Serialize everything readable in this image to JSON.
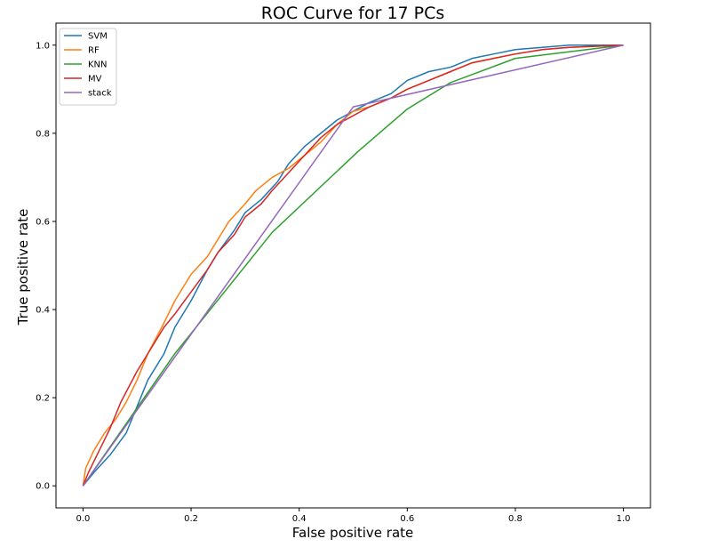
{
  "chart_data": {
    "type": "line",
    "title": "ROC Curve for 17 PCs",
    "xlabel": "False positive rate",
    "ylabel": "True positive rate",
    "xlim": [
      -0.05,
      1.05
    ],
    "ylim": [
      -0.05,
      1.05
    ],
    "x_ticks": [
      0.0,
      0.2,
      0.4,
      0.6,
      0.8,
      1.0
    ],
    "y_ticks": [
      0.0,
      0.2,
      0.4,
      0.6,
      0.8,
      1.0
    ],
    "x_tick_labels": [
      "0.0",
      "0.2",
      "0.4",
      "0.6",
      "0.8",
      "1.0"
    ],
    "y_tick_labels": [
      "0.0",
      "0.2",
      "0.4",
      "0.6",
      "0.8",
      "1.0"
    ],
    "grid": false,
    "legend_position": "top-left",
    "series": [
      {
        "name": "SVM",
        "color": "#1f77b4",
        "points": [
          [
            0.0,
            0.0
          ],
          [
            0.02,
            0.03
          ],
          [
            0.05,
            0.07
          ],
          [
            0.08,
            0.12
          ],
          [
            0.1,
            0.18
          ],
          [
            0.12,
            0.24
          ],
          [
            0.15,
            0.3
          ],
          [
            0.17,
            0.36
          ],
          [
            0.2,
            0.42
          ],
          [
            0.23,
            0.49
          ],
          [
            0.25,
            0.53
          ],
          [
            0.28,
            0.58
          ],
          [
            0.3,
            0.62
          ],
          [
            0.33,
            0.65
          ],
          [
            0.36,
            0.69
          ],
          [
            0.38,
            0.73
          ],
          [
            0.41,
            0.77
          ],
          [
            0.44,
            0.8
          ],
          [
            0.47,
            0.83
          ],
          [
            0.5,
            0.85
          ],
          [
            0.53,
            0.87
          ],
          [
            0.57,
            0.89
          ],
          [
            0.6,
            0.92
          ],
          [
            0.64,
            0.94
          ],
          [
            0.68,
            0.95
          ],
          [
            0.72,
            0.97
          ],
          [
            0.76,
            0.98
          ],
          [
            0.8,
            0.99
          ],
          [
            0.85,
            0.995
          ],
          [
            0.9,
            1.0
          ],
          [
            1.0,
            1.0
          ]
        ]
      },
      {
        "name": "RF",
        "color": "#ff7f0e",
        "points": [
          [
            0.0,
            0.0
          ],
          [
            0.005,
            0.04
          ],
          [
            0.02,
            0.08
          ],
          [
            0.04,
            0.12
          ],
          [
            0.06,
            0.15
          ],
          [
            0.08,
            0.19
          ],
          [
            0.1,
            0.24
          ],
          [
            0.12,
            0.3
          ],
          [
            0.15,
            0.37
          ],
          [
            0.17,
            0.42
          ],
          [
            0.2,
            0.48
          ],
          [
            0.23,
            0.52
          ],
          [
            0.25,
            0.56
          ],
          [
            0.27,
            0.6
          ],
          [
            0.3,
            0.64
          ],
          [
            0.32,
            0.67
          ],
          [
            0.35,
            0.7
          ],
          [
            0.38,
            0.72
          ],
          [
            0.41,
            0.75
          ],
          [
            0.44,
            0.78
          ],
          [
            0.47,
            0.82
          ],
          [
            0.5,
            0.85
          ],
          [
            0.53,
            0.86
          ],
          [
            0.57,
            0.88
          ],
          [
            0.6,
            0.9
          ],
          [
            0.64,
            0.92
          ],
          [
            0.68,
            0.94
          ],
          [
            0.72,
            0.96
          ],
          [
            0.76,
            0.97
          ],
          [
            0.8,
            0.98
          ],
          [
            0.85,
            0.99
          ],
          [
            0.9,
            0.995
          ],
          [
            1.0,
            1.0
          ]
        ]
      },
      {
        "name": "KNN",
        "color": "#2ca02c",
        "points": [
          [
            0.0,
            0.0
          ],
          [
            0.17,
            0.3
          ],
          [
            0.35,
            0.575
          ],
          [
            0.51,
            0.76
          ],
          [
            0.6,
            0.855
          ],
          [
            0.68,
            0.915
          ],
          [
            0.8,
            0.97
          ],
          [
            1.0,
            1.0
          ]
        ]
      },
      {
        "name": "MV",
        "color": "#d62728",
        "points": [
          [
            0.0,
            0.0
          ],
          [
            0.01,
            0.03
          ],
          [
            0.03,
            0.08
          ],
          [
            0.05,
            0.13
          ],
          [
            0.07,
            0.19
          ],
          [
            0.1,
            0.26
          ],
          [
            0.12,
            0.3
          ],
          [
            0.15,
            0.36
          ],
          [
            0.17,
            0.39
          ],
          [
            0.2,
            0.44
          ],
          [
            0.23,
            0.49
          ],
          [
            0.25,
            0.53
          ],
          [
            0.28,
            0.57
          ],
          [
            0.3,
            0.61
          ],
          [
            0.33,
            0.64
          ],
          [
            0.35,
            0.67
          ],
          [
            0.38,
            0.71
          ],
          [
            0.41,
            0.75
          ],
          [
            0.44,
            0.79
          ],
          [
            0.47,
            0.82
          ],
          [
            0.5,
            0.84
          ],
          [
            0.53,
            0.86
          ],
          [
            0.57,
            0.88
          ],
          [
            0.6,
            0.9
          ],
          [
            0.64,
            0.92
          ],
          [
            0.68,
            0.94
          ],
          [
            0.72,
            0.96
          ],
          [
            0.76,
            0.97
          ],
          [
            0.8,
            0.98
          ],
          [
            0.85,
            0.99
          ],
          [
            0.9,
            0.995
          ],
          [
            1.0,
            1.0
          ]
        ]
      },
      {
        "name": "stack",
        "color": "#9467bd",
        "points": [
          [
            0.0,
            0.0
          ],
          [
            0.5,
            0.86
          ],
          [
            1.0,
            1.0
          ]
        ]
      }
    ]
  }
}
